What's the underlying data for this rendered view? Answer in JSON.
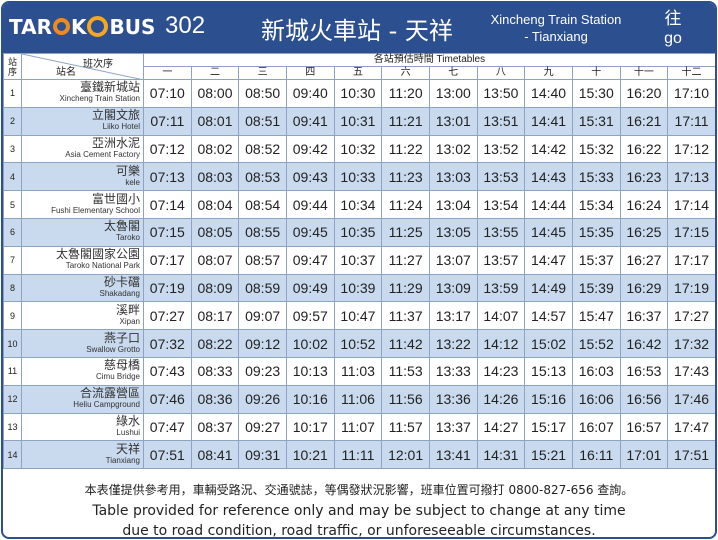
{
  "header": {
    "logo_pre": "TAR",
    "logo_mid": "K",
    "logo_post": "BUS",
    "route_number": "302",
    "route_zh": "新城火車站 - 天祥",
    "route_en_line1": "Xincheng Train Station",
    "route_en_line2": "- Tianxiang",
    "direction_zh": "往",
    "direction_en": "go"
  },
  "table": {
    "index_header": "站序",
    "trip_header": "班次序",
    "stop_header": "站名",
    "timetable_header": "各站預估時間 Timetables",
    "trips": [
      "一",
      "二",
      "三",
      "四",
      "五",
      "六",
      "七",
      "八",
      "九",
      "十",
      "十一",
      "十二"
    ],
    "rows": [
      {
        "idx": "1",
        "zh": "臺鐵新城站",
        "en": "Xincheng Train Station",
        "times": [
          "07:10",
          "08:00",
          "08:50",
          "09:40",
          "10:30",
          "11:20",
          "13:00",
          "13:50",
          "14:40",
          "15:30",
          "16:20",
          "17:10"
        ]
      },
      {
        "idx": "2",
        "zh": "立閣文旅",
        "en": "Liiko Hotel",
        "times": [
          "07:11",
          "08:01",
          "08:51",
          "09:41",
          "10:31",
          "11:21",
          "13:01",
          "13:51",
          "14:41",
          "15:31",
          "16:21",
          "17:11"
        ]
      },
      {
        "idx": "3",
        "zh": "亞洲水泥",
        "en": "Asia Cement Factory",
        "times": [
          "07:12",
          "08:02",
          "08:52",
          "09:42",
          "10:32",
          "11:22",
          "13:02",
          "13:52",
          "14:42",
          "15:32",
          "16:22",
          "17:12"
        ]
      },
      {
        "idx": "4",
        "zh": "可樂",
        "en": "kele",
        "times": [
          "07:13",
          "08:03",
          "08:53",
          "09:43",
          "10:33",
          "11:23",
          "13:03",
          "13:53",
          "14:43",
          "15:33",
          "16:23",
          "17:13"
        ]
      },
      {
        "idx": "5",
        "zh": "富世國小",
        "en": "Fushi Elementary School",
        "times": [
          "07:14",
          "08:04",
          "08:54",
          "09:44",
          "10:34",
          "11:24",
          "13:04",
          "13:54",
          "14:44",
          "15:34",
          "16:24",
          "17:14"
        ]
      },
      {
        "idx": "6",
        "zh": "太魯閣",
        "en": "Taroko",
        "times": [
          "07:15",
          "08:05",
          "08:55",
          "09:45",
          "10:35",
          "11:25",
          "13:05",
          "13:55",
          "14:45",
          "15:35",
          "16:25",
          "17:15"
        ]
      },
      {
        "idx": "7",
        "zh": "太魯閣國家公園",
        "en": "Taroko National Park",
        "times": [
          "07:17",
          "08:07",
          "08:57",
          "09:47",
          "10:37",
          "11:27",
          "13:07",
          "13:57",
          "14:47",
          "15:37",
          "16:27",
          "17:17"
        ]
      },
      {
        "idx": "8",
        "zh": "砂卡礑",
        "en": "Shakadang",
        "times": [
          "07:19",
          "08:09",
          "08:59",
          "09:49",
          "10:39",
          "11:29",
          "13:09",
          "13:59",
          "14:49",
          "15:39",
          "16:29",
          "17:19"
        ]
      },
      {
        "idx": "9",
        "zh": "溪畔",
        "en": "Xipan",
        "times": [
          "07:27",
          "08:17",
          "09:07",
          "09:57",
          "10:47",
          "11:37",
          "13:17",
          "14:07",
          "14:57",
          "15:47",
          "16:37",
          "17:27"
        ]
      },
      {
        "idx": "10",
        "zh": "燕子口",
        "en": "Swallow Grotto",
        "times": [
          "07:32",
          "08:22",
          "09:12",
          "10:02",
          "10:52",
          "11:42",
          "13:22",
          "14:12",
          "15:02",
          "15:52",
          "16:42",
          "17:32"
        ]
      },
      {
        "idx": "11",
        "zh": "慈母橋",
        "en": "Cimu Bridge",
        "times": [
          "07:43",
          "08:33",
          "09:23",
          "10:13",
          "11:03",
          "11:53",
          "13:33",
          "14:23",
          "15:13",
          "16:03",
          "16:53",
          "17:43"
        ]
      },
      {
        "idx": "12",
        "zh": "合流露營區",
        "en": "Heliu Campground",
        "times": [
          "07:46",
          "08:36",
          "09:26",
          "10:16",
          "11:06",
          "11:56",
          "13:36",
          "14:26",
          "15:16",
          "16:06",
          "16:56",
          "17:46"
        ]
      },
      {
        "idx": "13",
        "zh": "綠水",
        "en": "Lushui",
        "times": [
          "07:47",
          "08:37",
          "09:27",
          "10:17",
          "11:07",
          "11:57",
          "13:37",
          "14:27",
          "15:17",
          "16:07",
          "16:57",
          "17:47"
        ]
      },
      {
        "idx": "14",
        "zh": "天祥",
        "en": "Tianxiang",
        "times": [
          "07:51",
          "08:41",
          "09:31",
          "10:21",
          "11:11",
          "12:01",
          "13:41",
          "14:31",
          "15:21",
          "16:11",
          "17:01",
          "17:51"
        ]
      }
    ]
  },
  "footer": {
    "note_zh": "本表僅提供參考用，車輛受路況、交通號誌，等偶發狀況影響，班車位置可撥打 0800-827-656 查詢。",
    "note_en_line1": "Table provided for reference only and may be subject to change at any time",
    "note_en_line2": "due to road condition, road traffic, or unforeseeable circumstances."
  },
  "colors": {
    "header_bg": "#2c4f8f",
    "row_alt_bg": "#c9d9ee",
    "logo_orange": "#f08a1c"
  }
}
